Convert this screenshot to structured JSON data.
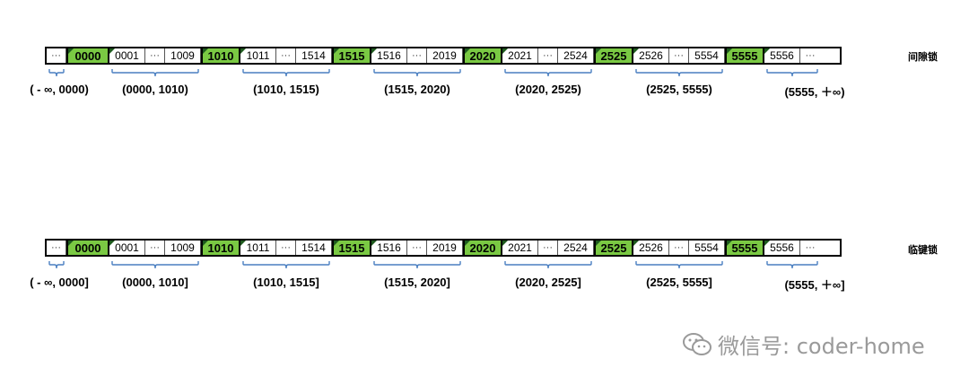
{
  "rows": [
    {
      "title": "间隙锁",
      "cells": [
        {
          "text": "···",
          "type": "dot",
          "w": 22
        },
        {
          "text": "0000",
          "type": "key",
          "w": 48
        },
        {
          "text": "0001",
          "type": "num",
          "w": 40
        },
        {
          "text": "···",
          "type": "dot",
          "w": 22
        },
        {
          "text": "1009",
          "type": "num",
          "w": 40
        },
        {
          "text": "1010",
          "type": "key",
          "w": 44
        },
        {
          "text": "1011",
          "type": "num",
          "w": 40
        },
        {
          "text": "···",
          "type": "dot",
          "w": 22
        },
        {
          "text": "1514",
          "type": "num",
          "w": 40
        },
        {
          "text": "1515",
          "type": "key",
          "w": 44
        },
        {
          "text": "1516",
          "type": "num",
          "w": 40
        },
        {
          "text": "···",
          "type": "dot",
          "w": 22
        },
        {
          "text": "2019",
          "type": "num",
          "w": 40
        },
        {
          "text": "2020",
          "type": "key",
          "w": 44
        },
        {
          "text": "2021",
          "type": "num",
          "w": 40
        },
        {
          "text": "···",
          "type": "dot",
          "w": 22
        },
        {
          "text": "2524",
          "type": "num",
          "w": 40
        },
        {
          "text": "2525",
          "type": "key",
          "w": 44
        },
        {
          "text": "2526",
          "type": "num",
          "w": 40
        },
        {
          "text": "···",
          "type": "dot",
          "w": 22
        },
        {
          "text": "5554",
          "type": "num",
          "w": 40
        },
        {
          "text": "5555",
          "type": "key",
          "w": 44
        },
        {
          "text": "5556",
          "type": "num",
          "w": 40
        },
        {
          "text": "···",
          "type": "dot",
          "w": 22
        }
      ],
      "intervals": [
        "( - ∞, 0000)",
        "(0000, 1010)",
        "(1010, 1515)",
        "(1515, 2020)",
        "(2020, 2525)",
        "(2525, 5555)",
        "(5555, ＋∞)"
      ]
    },
    {
      "title": "临键锁",
      "cells": [
        {
          "text": "···",
          "type": "dot",
          "w": 22
        },
        {
          "text": "0000",
          "type": "key",
          "w": 48
        },
        {
          "text": "0001",
          "type": "num",
          "w": 40
        },
        {
          "text": "···",
          "type": "dot",
          "w": 22
        },
        {
          "text": "1009",
          "type": "num",
          "w": 40
        },
        {
          "text": "1010",
          "type": "key",
          "w": 44
        },
        {
          "text": "1011",
          "type": "num",
          "w": 40
        },
        {
          "text": "···",
          "type": "dot",
          "w": 22
        },
        {
          "text": "1514",
          "type": "num",
          "w": 40
        },
        {
          "text": "1515",
          "type": "key",
          "w": 44
        },
        {
          "text": "1516",
          "type": "num",
          "w": 40
        },
        {
          "text": "···",
          "type": "dot",
          "w": 22
        },
        {
          "text": "2019",
          "type": "num",
          "w": 40
        },
        {
          "text": "2020",
          "type": "key",
          "w": 44
        },
        {
          "text": "2021",
          "type": "num",
          "w": 40
        },
        {
          "text": "···",
          "type": "dot",
          "w": 22
        },
        {
          "text": "2524",
          "type": "num",
          "w": 40
        },
        {
          "text": "2525",
          "type": "key",
          "w": 44
        },
        {
          "text": "2526",
          "type": "num",
          "w": 40
        },
        {
          "text": "···",
          "type": "dot",
          "w": 22
        },
        {
          "text": "5554",
          "type": "num",
          "w": 40
        },
        {
          "text": "5555",
          "type": "key",
          "w": 44
        },
        {
          "text": "5556",
          "type": "num",
          "w": 40
        },
        {
          "text": "···",
          "type": "dot",
          "w": 22
        }
      ],
      "intervals": [
        "( - ∞, 0000]",
        "(0000, 1010]",
        "(1010, 1515]",
        "(1515, 2020]",
        "(2020, 2525]",
        "(2525, 5555]",
        "(5555, ＋∞]"
      ]
    }
  ],
  "watermark": "微信号: coder-home",
  "colors": {
    "key_fill": "#7ac943",
    "brace": "#4a7fc1",
    "watermark": "#9a9a9a"
  }
}
